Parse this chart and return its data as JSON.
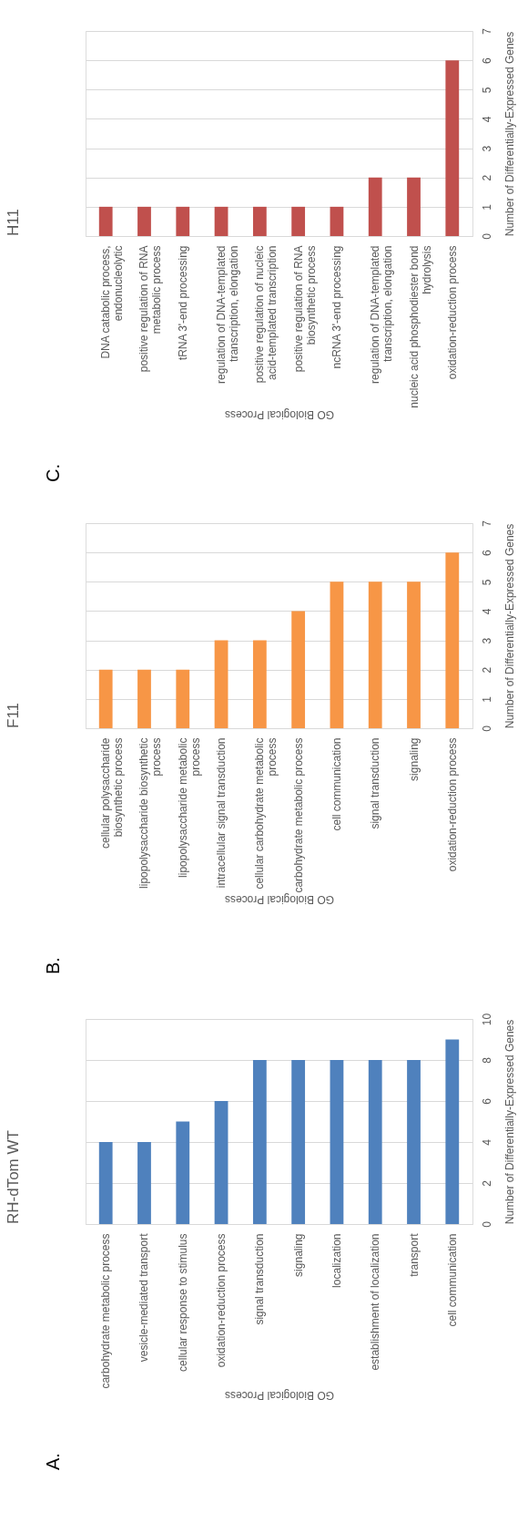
{
  "chart_data": [
    {
      "type": "bar",
      "title": "H11",
      "annotations": [
        "C."
      ],
      "xlabel": "GO Biological Process",
      "ylabel": "Number of Differentially-Expressed Genes",
      "categories": [
        "DNA catabolic process, endonucleolytic",
        "positive regulation of RNA metabolic process",
        "tRNA 3'-end processing",
        "regulation of DNA-templated transcription, elongation",
        "positive regulation of nucleic acid-templated transcription",
        "positive regulation of RNA biosynthetic process",
        "ncRNA 3'-end processing",
        "regulation of DNA-templated transcription, elongation",
        "nucleic acid phosphodiester bond hydrolysis",
        "oxidation-reduction process"
      ],
      "values": [
        1,
        1,
        1,
        1,
        1,
        1,
        1,
        2,
        2,
        6
      ],
      "color": "#c0504d",
      "ylim": [
        0,
        7
      ],
      "yticks": [
        0,
        1,
        2,
        3,
        4,
        5,
        6,
        7
      ],
      "grid": "y"
    },
    {
      "type": "bar",
      "title": "F11",
      "annotations": [
        "B."
      ],
      "xlabel": "GO Biological Process",
      "ylabel": "Number of Differentially-Expressed Genes",
      "categories": [
        "cellular polysaccharide biosynthetic process",
        "lipopolysaccharide biosynthetic process",
        "lipopolysaccharide metabolic process",
        "intracellular signal transduction",
        "cellular carbohydrate metabolic process",
        "carbohydrate metabolic process",
        "cell communication",
        "signal transduction",
        "signaling",
        "oxidation-reduction process"
      ],
      "values": [
        2,
        2,
        2,
        3,
        3,
        4,
        5,
        5,
        5,
        6
      ],
      "color": "#f79646",
      "ylim": [
        0,
        7
      ],
      "yticks": [
        0,
        1,
        2,
        3,
        4,
        5,
        6,
        7
      ],
      "grid": "y"
    },
    {
      "type": "bar",
      "title": "RH-dTom WT",
      "annotations": [
        "A."
      ],
      "xlabel": "GO Biological Process",
      "ylabel": "Number of Differentially-Expressed Genes",
      "categories": [
        "carbohydrate metabolic process",
        "vesicle-mediated transport",
        "cellular response to stimulus",
        "oxidation-reduction process",
        "signal transduction",
        "signaling",
        "localization",
        "establishment of localization",
        "transport",
        "cell communication"
      ],
      "values": [
        4,
        4,
        5,
        6,
        8,
        8,
        8,
        8,
        8,
        9
      ],
      "color": "#4f81bd",
      "ylim": [
        0,
        10
      ],
      "yticks": [
        0,
        2,
        4,
        6,
        8,
        10
      ],
      "grid": "y"
    }
  ]
}
